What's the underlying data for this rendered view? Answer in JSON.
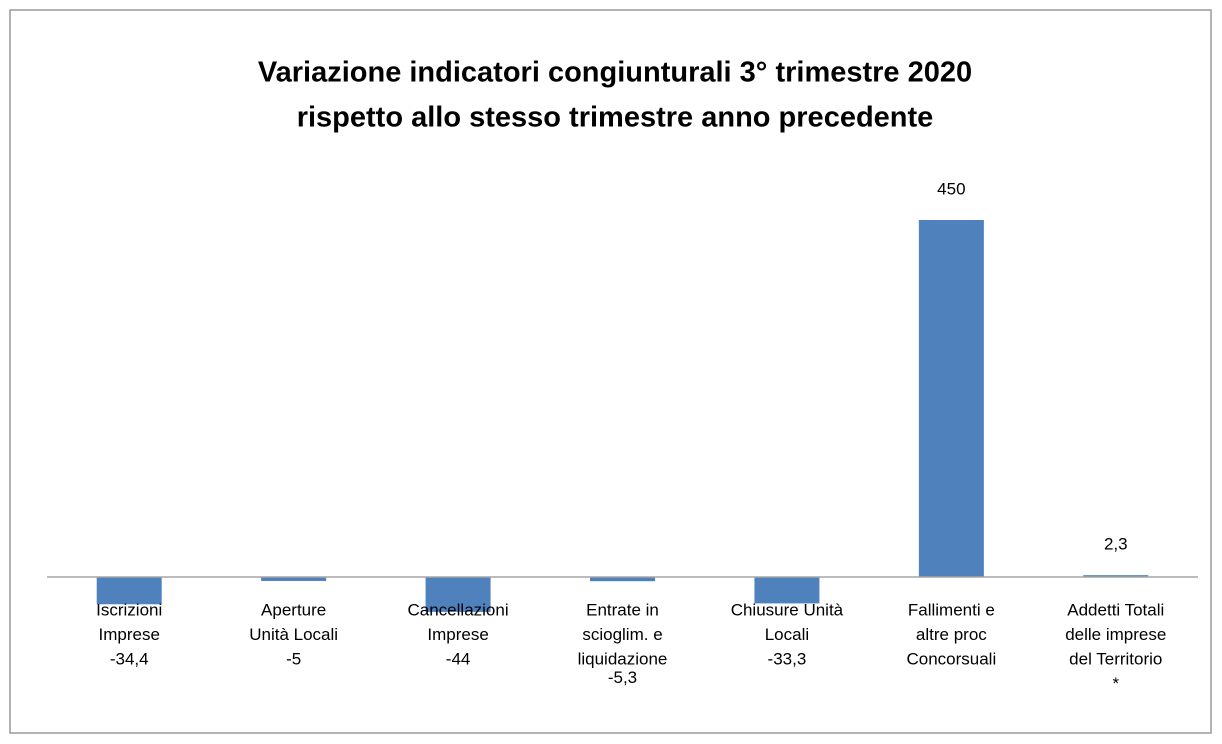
{
  "chart_data": {
    "type": "bar",
    "title": [
      "Variazione indicatori congiunturali 3° trimestre 2020",
      "rispetto allo stesso trimestre anno precedente"
    ],
    "categories": [
      [
        "Iscrizioni",
        "Imprese"
      ],
      [
        "Aperture",
        "Unità Locali"
      ],
      [
        "Cancellazioni",
        "Imprese"
      ],
      [
        "Entrate in",
        "scioglim. e",
        "liquidazione"
      ],
      [
        "Chiusure Unità",
        "Locali"
      ],
      [
        "Fallimenti e",
        "altre proc",
        "Concorsuali"
      ],
      [
        "Addetti Totali",
        "delle imprese",
        "del Territorio",
        "*"
      ]
    ],
    "values": [
      -34.4,
      -5,
      -44,
      -5.3,
      -33.3,
      450,
      2.3
    ],
    "value_labels": [
      "-34,4",
      "-5",
      "-44",
      "-5,3",
      "-33,3",
      "450",
      "2,3"
    ],
    "color": "#4f81bd"
  }
}
